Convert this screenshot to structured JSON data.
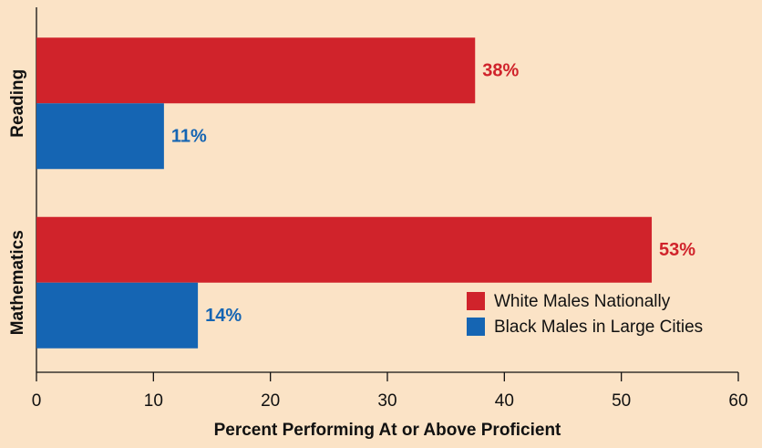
{
  "chart_data": {
    "type": "barh",
    "xlabel": "Percent Performing At or Above Proficient",
    "categories": [
      "Reading",
      "Mathematics"
    ],
    "series": [
      {
        "name": "White Males Nationally",
        "color": "#d0232b",
        "values": [
          37.5,
          52.6
        ],
        "value_labels": [
          "38%",
          "53%"
        ]
      },
      {
        "name": "Black Males in Large Cities",
        "color": "#1565b3",
        "values": [
          10.9,
          13.8
        ],
        "value_labels": [
          "11%",
          "14%"
        ]
      }
    ],
    "xlim": [
      0,
      60
    ],
    "xticks": [
      0,
      10,
      20,
      30,
      40,
      50,
      60
    ],
    "legend": "lower right"
  }
}
